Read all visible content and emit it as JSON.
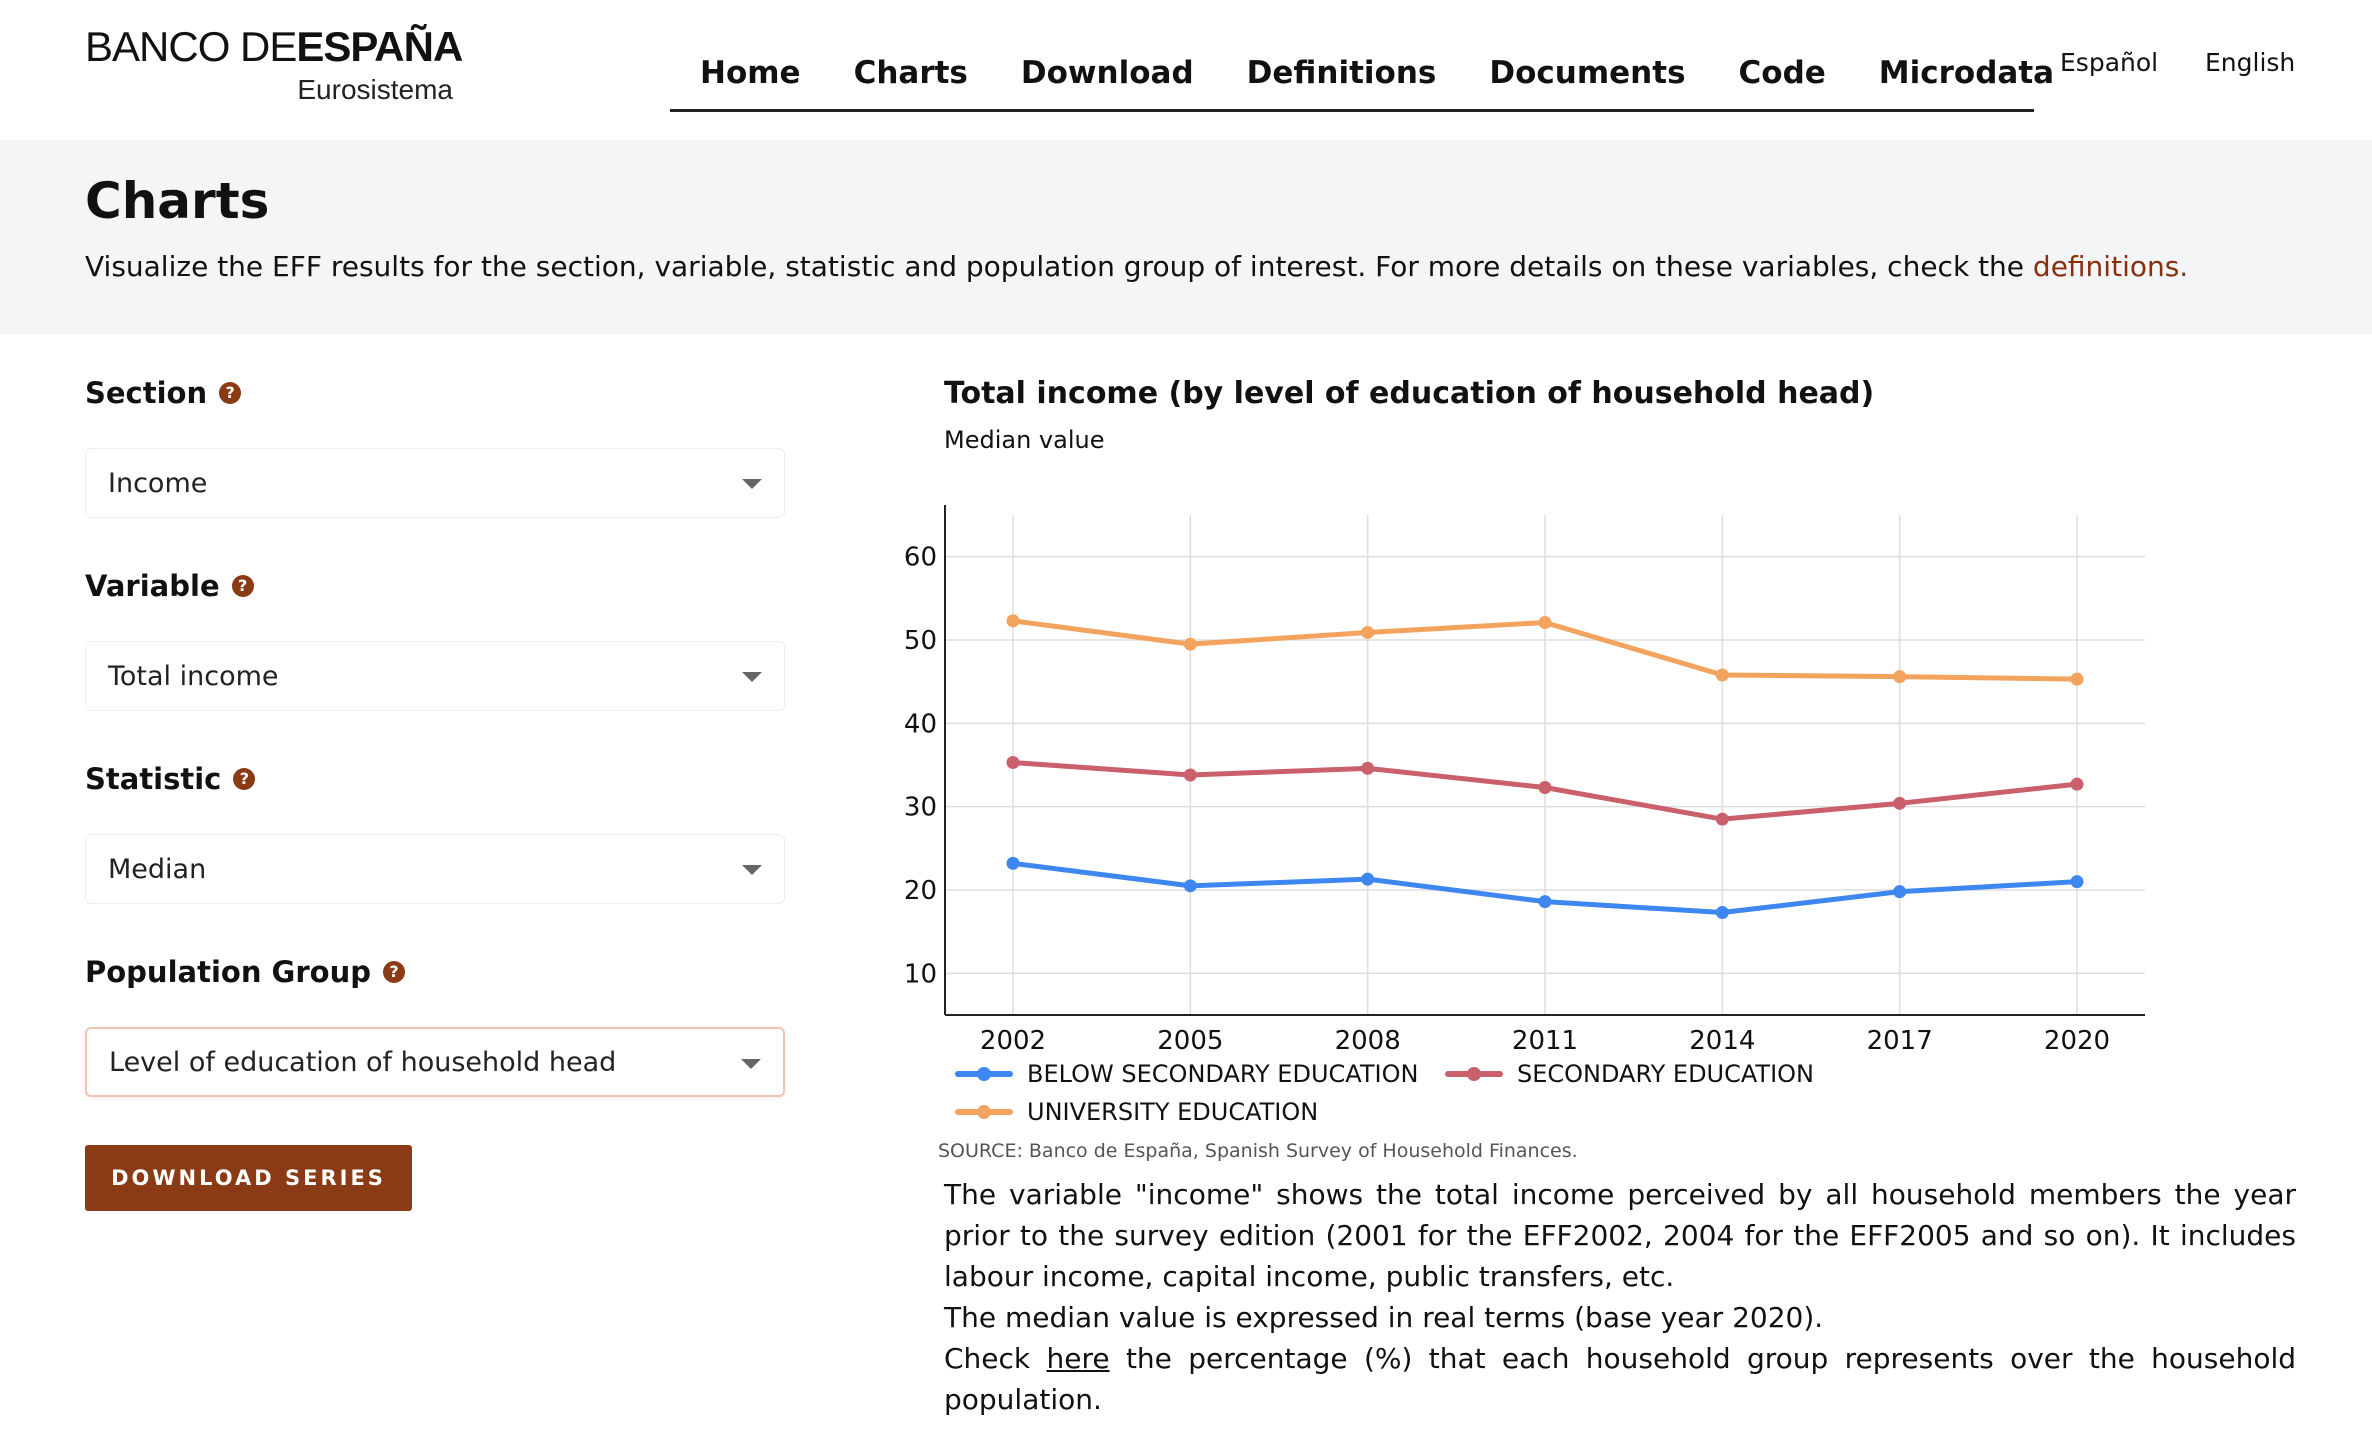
{
  "logo": {
    "part1": "BANCO DE",
    "part2": "ESPAÑA",
    "sub": "Eurosistema"
  },
  "nav": {
    "items": [
      "Home",
      "Charts",
      "Download",
      "Definitions",
      "Documents",
      "Code",
      "Microdata"
    ],
    "lang_es": "Español",
    "lang_en": "English"
  },
  "banner": {
    "title": "Charts",
    "desc": "Visualize the EFF results for the section, variable, statistic and population group of interest. For more details on these variables, check the ",
    "link": "definitions."
  },
  "form": {
    "section_label": "Section",
    "section_value": "Income",
    "variable_label": "Variable",
    "variable_value": "Total income",
    "statistic_label": "Statistic",
    "statistic_value": "Median",
    "group_label": "Population Group",
    "group_value": "Level of education of household head",
    "help": "?",
    "download": "DOWNLOAD SERIES"
  },
  "chart_data": {
    "type": "line",
    "title": "Total income (by level of education of household head)",
    "subtitle": "Median value",
    "x": [
      2002,
      2005,
      2008,
      2011,
      2014,
      2017,
      2020
    ],
    "ylim": [
      5,
      65
    ],
    "yticks": [
      10,
      20,
      30,
      40,
      50,
      60
    ],
    "grid": true,
    "legend_position": "bottom",
    "series": [
      {
        "name": "BELOW SECONDARY EDUCATION",
        "color": "#3f87f0",
        "values": [
          23.2,
          20.5,
          21.3,
          18.6,
          17.3,
          19.8,
          21.0
        ]
      },
      {
        "name": "SECONDARY EDUCATION",
        "color": "#c9606c",
        "values": [
          35.3,
          33.8,
          34.6,
          32.3,
          28.5,
          30.4,
          32.7
        ]
      },
      {
        "name": "UNIVERSITY EDUCATION",
        "color": "#f2a45e",
        "values": [
          52.3,
          49.5,
          50.9,
          52.1,
          45.8,
          45.6,
          45.3
        ]
      }
    ],
    "source": "SOURCE: Banco de España, Spanish Survey of Household Finances."
  },
  "explanation": {
    "p1": "The variable \"income\" shows the total income perceived by all household members the year prior to the survey edition (2001 for the EFF2002, 2004 for the EFF2005 and so on). It includes labour income, capital income, public transfers, etc.",
    "p2": "The median value is expressed in real terms (base year 2020).",
    "p3_before": "Check",
    "p3_link": "here",
    "p3_after": "the percentage (%) that each household group represents over the household population."
  }
}
